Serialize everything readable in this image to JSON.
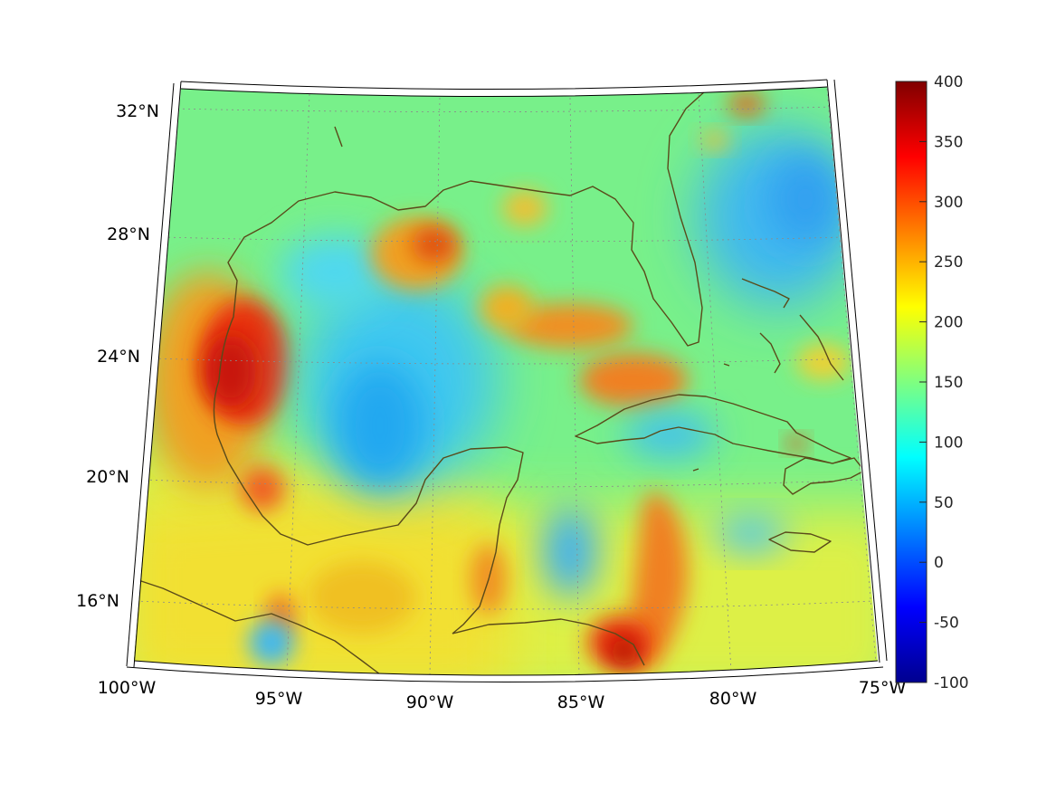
{
  "map": {
    "projection": "conic",
    "region": "Gulf of Mexico and Caribbean",
    "lon_range": [
      -100,
      -75
    ],
    "lat_range": [
      14,
      33
    ],
    "graticule": "dotted",
    "coastline_color": "#5a4a1a",
    "colormap": "jet",
    "lon_ticks": [
      {
        "value": -100,
        "label": "100°W"
      },
      {
        "value": -95,
        "label": "95°W"
      },
      {
        "value": -90,
        "label": "90°W"
      },
      {
        "value": -85,
        "label": "85°W"
      },
      {
        "value": -80,
        "label": "80°W"
      },
      {
        "value": -75,
        "label": "75°W"
      }
    ],
    "lat_ticks": [
      {
        "value": 16,
        "label": "16°N"
      },
      {
        "value": 20,
        "label": "20°N"
      },
      {
        "value": 24,
        "label": "24°N"
      },
      {
        "value": 28,
        "label": "28°N"
      },
      {
        "value": 32,
        "label": "32°N"
      }
    ]
  },
  "colorbar": {
    "min": -100,
    "max": 400,
    "ticks": [
      "400",
      "350",
      "300",
      "250",
      "200",
      "150",
      "100",
      "50",
      "0",
      "-50",
      "-100"
    ]
  },
  "field_features": [
    {
      "name": "western gulf coast high",
      "lon": -97.2,
      "lat": 24.6,
      "value": 340
    },
    {
      "name": "louisiana shelf high",
      "lon": -91.5,
      "lat": 27.8,
      "value": 290
    },
    {
      "name": "central gulf high",
      "lon": -85.0,
      "lat": 25.4,
      "value": 270
    },
    {
      "name": "caribbean ridge high",
      "lon": -82.3,
      "lat": 17.2,
      "value": 285
    },
    {
      "name": "honduras coast high",
      "lon": -83.3,
      "lat": 15.2,
      "value": 360
    },
    {
      "name": "central gulf low",
      "lon": -90.5,
      "lat": 23.0,
      "value": 100
    },
    {
      "name": "atlantic low",
      "lon": -76.5,
      "lat": 28.5,
      "value": 95
    },
    {
      "name": "yucatan channel low",
      "lon": -85.5,
      "lat": 18.5,
      "value": 110
    }
  ]
}
